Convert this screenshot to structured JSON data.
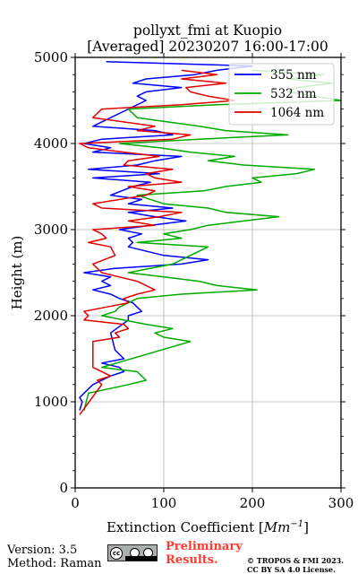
{
  "chart_data": {
    "type": "line",
    "title_line1": "pollyxt_fmi at Kuopio",
    "title_line2": "[Averaged] 20230207 16:00-17:00",
    "xlabel": "Extinction Coefficient [Mm⁻¹]",
    "ylabel": "Height (m)",
    "xlim": [
      0,
      300
    ],
    "ylim": [
      0,
      5000
    ],
    "xticks": [
      "0",
      "100",
      "200",
      "300"
    ],
    "yticks": [
      "0",
      "1000",
      "2000",
      "3000",
      "4000",
      "5000"
    ],
    "grid": true,
    "legend_position": "top-right",
    "series": [
      {
        "name": "355 nm",
        "color": "#0000ff",
        "height": [
          900,
          1000,
          1050,
          1200,
          1300,
          1350,
          1400,
          1450,
          1500,
          1600,
          1800,
          1950,
          2000,
          2050,
          2100,
          2150,
          2200,
          2250,
          2300,
          2350,
          2400,
          2450,
          2500,
          2550,
          2600,
          2650,
          2700,
          2800,
          2850,
          2900,
          2950,
          3000,
          3050,
          3100,
          3150,
          3200,
          3250,
          3300,
          3350,
          3400,
          3500,
          3550,
          3600,
          3650,
          3700,
          3750,
          3800,
          3850,
          3900,
          3950,
          4000,
          4050,
          4100,
          4150,
          4200,
          4300,
          4500,
          4550,
          4600,
          4650,
          4700,
          4750,
          4800,
          4850,
          4900,
          4950
        ],
        "values": [
          5,
          8,
          5,
          20,
          40,
          55,
          50,
          30,
          55,
          45,
          40,
          60,
          60,
          75,
          70,
          65,
          50,
          40,
          20,
          40,
          30,
          40,
          10,
          45,
          120,
          150,
          100,
          60,
          65,
          60,
          75,
          50,
          85,
          125,
          90,
          60,
          110,
          60,
          75,
          40,
          65,
          85,
          20,
          95,
          15,
          70,
          90,
          120,
          20,
          40,
          10,
          30,
          110,
          90,
          20,
          40,
          80,
          70,
          80,
          120,
          65,
          80,
          135,
          160,
          200,
          35
        ]
      },
      {
        "name": "532 nm",
        "color": "#00aa00",
        "height": [
          900,
          1100,
          1200,
          1250,
          1300,
          1350,
          1400,
          1700,
          1750,
          1800,
          1850,
          1900,
          2000,
          2050,
          2100,
          2200,
          2250,
          2300,
          2350,
          2400,
          2450,
          2500,
          2600,
          2700,
          2800,
          2850,
          2900,
          2950,
          3000,
          3050,
          3100,
          3150,
          3200,
          3250,
          3300,
          3400,
          3450,
          3500,
          3550,
          3600,
          3650,
          3700,
          3750,
          3800,
          3850,
          3900,
          3950,
          4000,
          4050,
          4100,
          4150,
          4200,
          4300,
          4400,
          4450,
          4500,
          4550,
          4600,
          4650,
          4700,
          4750,
          4800,
          4850
        ],
        "values": [
          10,
          15,
          60,
          80,
          75,
          70,
          30,
          130,
          100,
          90,
          110,
          80,
          30,
          45,
          50,
          70,
          120,
          205,
          160,
          140,
          100,
          60,
          110,
          130,
          150,
          70,
          120,
          100,
          130,
          150,
          190,
          230,
          170,
          150,
          100,
          70,
          145,
          170,
          210,
          200,
          250,
          270,
          190,
          150,
          180,
          130,
          95,
          50,
          140,
          240,
          170,
          140,
          70,
          60,
          160,
          300,
          270,
          240,
          250,
          290,
          240,
          280,
          200
        ]
      },
      {
        "name": "1064 nm",
        "color": "#e00000",
        "height": [
          850,
          1200,
          1250,
          1300,
          1400,
          1700,
          1750,
          1800,
          1850,
          1900,
          1950,
          2000,
          2050,
          2150,
          2200,
          2250,
          2300,
          2400,
          2450,
          2500,
          2600,
          2700,
          2800,
          2850,
          2900,
          2950,
          3000,
          3050,
          3100,
          3150,
          3200,
          3250,
          3300,
          3400,
          3450,
          3500,
          3550,
          3600,
          3650,
          3700,
          3750,
          3800,
          3850,
          3900,
          3950,
          4000,
          4050,
          4100,
          4150,
          4200,
          4300,
          4400,
          4450,
          4500,
          4550,
          4600,
          4650,
          4700,
          4750,
          4800,
          4850
        ],
        "values": [
          5,
          30,
          25,
          40,
          20,
          20,
          50,
          45,
          60,
          55,
          10,
          15,
          10,
          60,
          55,
          70,
          90,
          70,
          50,
          30,
          20,
          45,
          40,
          15,
          35,
          30,
          20,
          90,
          60,
          95,
          120,
          30,
          20,
          80,
          90,
          60,
          120,
          90,
          80,
          110,
          55,
          60,
          95,
          55,
          15,
          5,
          110,
          130,
          70,
          90,
          20,
          30,
          120,
          180,
          150,
          130,
          125,
          170,
          120,
          160,
          120
        ]
      }
    ]
  },
  "footer": {
    "version": "Version: 3.5",
    "method": "Method: Raman",
    "preliminary_line1": "Preliminary",
    "preliminary_line2": "Results.",
    "copyright_line1": "© TROPOS & FMI 2023.",
    "copyright_line2": "CC BY SA 4.0 License."
  }
}
